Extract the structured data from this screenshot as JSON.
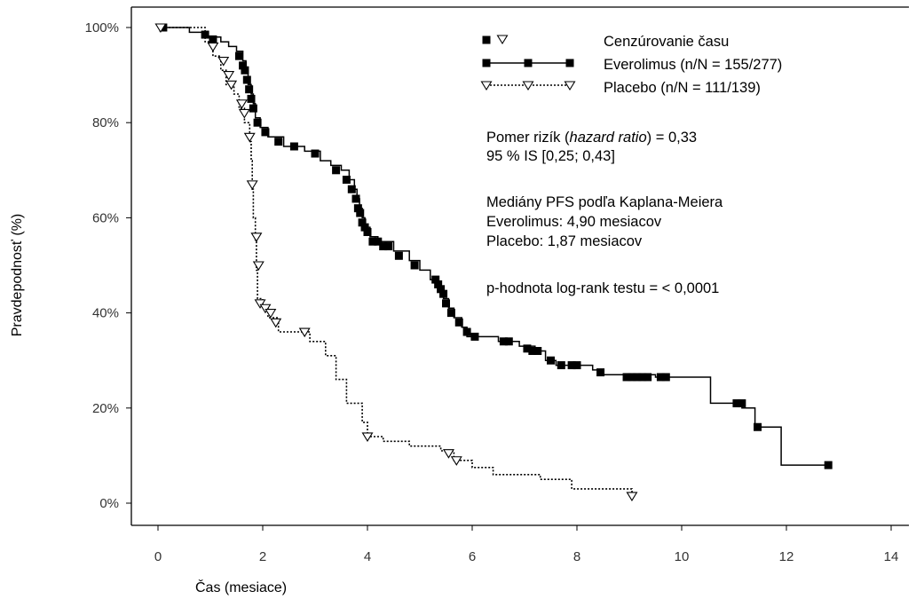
{
  "chart_data": {
    "type": "line",
    "step": true,
    "xlabel": "Čas (mesiace)",
    "ylabel": "Pravdepodnosť (%)",
    "xlim": [
      0,
      14
    ],
    "ylim": [
      0,
      100
    ],
    "x_ticks": [
      0,
      2,
      4,
      6,
      8,
      10,
      12,
      14
    ],
    "y_ticks": [
      0,
      20,
      40,
      60,
      80,
      100
    ],
    "y_tick_labels": [
      "0%",
      "20%",
      "40%",
      "60%",
      "80%",
      "100%"
    ],
    "grid": false,
    "legend_position": "top-right",
    "series": [
      {
        "name": "Everolimus (n/N = 155/277)",
        "color": "#000000",
        "line": "solid",
        "marker": "filled-square",
        "points": [
          [
            0,
            100
          ],
          [
            0.6,
            100
          ],
          [
            0.6,
            99
          ],
          [
            0.85,
            99
          ],
          [
            0.85,
            98
          ],
          [
            1.2,
            98
          ],
          [
            1.2,
            97
          ],
          [
            1.35,
            97
          ],
          [
            1.35,
            96
          ],
          [
            1.5,
            96
          ],
          [
            1.5,
            95
          ],
          [
            1.62,
            95
          ],
          [
            1.62,
            93
          ],
          [
            1.68,
            93
          ],
          [
            1.68,
            91
          ],
          [
            1.72,
            91
          ],
          [
            1.72,
            88
          ],
          [
            1.78,
            88
          ],
          [
            1.78,
            86
          ],
          [
            1.82,
            86
          ],
          [
            1.82,
            84
          ],
          [
            1.86,
            84
          ],
          [
            1.86,
            81
          ],
          [
            1.95,
            81
          ],
          [
            1.95,
            79
          ],
          [
            2.1,
            79
          ],
          [
            2.1,
            77
          ],
          [
            2.4,
            77
          ],
          [
            2.4,
            75
          ],
          [
            2.8,
            75
          ],
          [
            2.8,
            74
          ],
          [
            3.1,
            74
          ],
          [
            3.1,
            72
          ],
          [
            3.3,
            72
          ],
          [
            3.3,
            71
          ],
          [
            3.5,
            71
          ],
          [
            3.5,
            70
          ],
          [
            3.65,
            70
          ],
          [
            3.65,
            68
          ],
          [
            3.75,
            68
          ],
          [
            3.75,
            66
          ],
          [
            3.8,
            66
          ],
          [
            3.8,
            64
          ],
          [
            3.85,
            64
          ],
          [
            3.85,
            62
          ],
          [
            3.9,
            62
          ],
          [
            3.9,
            60
          ],
          [
            3.95,
            60
          ],
          [
            3.95,
            58
          ],
          [
            4.05,
            58
          ],
          [
            4.05,
            56
          ],
          [
            4.2,
            56
          ],
          [
            4.2,
            55
          ],
          [
            4.5,
            55
          ],
          [
            4.5,
            53
          ],
          [
            4.8,
            53
          ],
          [
            4.8,
            51
          ],
          [
            5.0,
            51
          ],
          [
            5.0,
            49
          ],
          [
            5.2,
            49
          ],
          [
            5.2,
            47
          ],
          [
            5.35,
            47
          ],
          [
            5.35,
            45
          ],
          [
            5.45,
            45
          ],
          [
            5.45,
            43
          ],
          [
            5.55,
            43
          ],
          [
            5.55,
            41
          ],
          [
            5.65,
            41
          ],
          [
            5.65,
            39
          ],
          [
            5.8,
            39
          ],
          [
            5.8,
            37
          ],
          [
            5.9,
            37
          ],
          [
            5.9,
            35
          ],
          [
            6.5,
            35
          ],
          [
            6.5,
            34
          ],
          [
            6.9,
            34
          ],
          [
            6.9,
            33
          ],
          [
            7.2,
            33
          ],
          [
            7.2,
            32
          ],
          [
            7.4,
            32
          ],
          [
            7.4,
            30
          ],
          [
            7.6,
            30
          ],
          [
            7.6,
            29
          ],
          [
            8.3,
            29
          ],
          [
            8.3,
            28
          ],
          [
            8.4,
            28
          ],
          [
            8.4,
            27
          ],
          [
            9.5,
            27
          ],
          [
            9.5,
            26.5
          ],
          [
            10.55,
            26.5
          ],
          [
            10.55,
            21
          ],
          [
            11.15,
            21
          ],
          [
            11.15,
            20
          ],
          [
            11.4,
            20
          ],
          [
            11.4,
            16
          ],
          [
            11.9,
            16
          ],
          [
            11.9,
            8
          ],
          [
            12.8,
            8
          ]
        ],
        "censored": [
          [
            0.1,
            100
          ],
          [
            0.9,
            98.5
          ],
          [
            1.05,
            97.5
          ],
          [
            1.55,
            94
          ],
          [
            1.62,
            92
          ],
          [
            1.66,
            91
          ],
          [
            1.7,
            89
          ],
          [
            1.74,
            87
          ],
          [
            1.78,
            85
          ],
          [
            1.82,
            83
          ],
          [
            1.9,
            80
          ],
          [
            2.05,
            78
          ],
          [
            2.3,
            76
          ],
          [
            2.6,
            75
          ],
          [
            3.0,
            73.5
          ],
          [
            3.4,
            70
          ],
          [
            3.6,
            68
          ],
          [
            3.7,
            66
          ],
          [
            3.78,
            64
          ],
          [
            3.82,
            62
          ],
          [
            3.86,
            61
          ],
          [
            3.9,
            59
          ],
          [
            3.95,
            58
          ],
          [
            4.0,
            57
          ],
          [
            4.1,
            55
          ],
          [
            4.2,
            55
          ],
          [
            4.3,
            54
          ],
          [
            4.4,
            54
          ],
          [
            4.6,
            52
          ],
          [
            4.9,
            50
          ],
          [
            5.3,
            47
          ],
          [
            5.35,
            46
          ],
          [
            5.4,
            45
          ],
          [
            5.45,
            44
          ],
          [
            5.5,
            42
          ],
          [
            5.6,
            40
          ],
          [
            5.75,
            38
          ],
          [
            5.9,
            36
          ],
          [
            6.05,
            35
          ],
          [
            6.6,
            34
          ],
          [
            6.7,
            34
          ],
          [
            7.05,
            32.5
          ],
          [
            7.15,
            32
          ],
          [
            7.25,
            32
          ],
          [
            7.5,
            30
          ],
          [
            7.7,
            29
          ],
          [
            7.9,
            29
          ],
          [
            8.0,
            29
          ],
          [
            8.45,
            27.5
          ],
          [
            8.95,
            26.5
          ],
          [
            9.05,
            26.5
          ],
          [
            9.15,
            26.5
          ],
          [
            9.25,
            26.5
          ],
          [
            9.35,
            26.5
          ],
          [
            9.6,
            26.5
          ],
          [
            9.7,
            26.5
          ],
          [
            11.05,
            21
          ],
          [
            11.15,
            21
          ],
          [
            11.45,
            16
          ],
          [
            12.8,
            8
          ]
        ]
      },
      {
        "name": "Placebo (n/N = 111/139)",
        "color": "#000000",
        "line": "dotted",
        "marker": "open-triangle-down",
        "points": [
          [
            0,
            100
          ],
          [
            0.9,
            100
          ],
          [
            0.9,
            97
          ],
          [
            1.05,
            97
          ],
          [
            1.05,
            94
          ],
          [
            1.2,
            94
          ],
          [
            1.2,
            91
          ],
          [
            1.3,
            91
          ],
          [
            1.3,
            88
          ],
          [
            1.45,
            88
          ],
          [
            1.45,
            86
          ],
          [
            1.55,
            86
          ],
          [
            1.55,
            83
          ],
          [
            1.65,
            83
          ],
          [
            1.65,
            80
          ],
          [
            1.75,
            80
          ],
          [
            1.75,
            76
          ],
          [
            1.78,
            76
          ],
          [
            1.78,
            72
          ],
          [
            1.8,
            72
          ],
          [
            1.8,
            66
          ],
          [
            1.82,
            66
          ],
          [
            1.82,
            60
          ],
          [
            1.86,
            60
          ],
          [
            1.86,
            55
          ],
          [
            1.88,
            55
          ],
          [
            1.88,
            49
          ],
          [
            1.9,
            49
          ],
          [
            1.9,
            43
          ],
          [
            2.0,
            43
          ],
          [
            2.0,
            41
          ],
          [
            2.1,
            41
          ],
          [
            2.1,
            39
          ],
          [
            2.3,
            39
          ],
          [
            2.3,
            36
          ],
          [
            2.9,
            36
          ],
          [
            2.9,
            34
          ],
          [
            3.2,
            34
          ],
          [
            3.2,
            31
          ],
          [
            3.4,
            31
          ],
          [
            3.4,
            26
          ],
          [
            3.6,
            26
          ],
          [
            3.6,
            21
          ],
          [
            3.9,
            21
          ],
          [
            3.9,
            17
          ],
          [
            4.0,
            17
          ],
          [
            4.0,
            14
          ],
          [
            4.3,
            14
          ],
          [
            4.3,
            13
          ],
          [
            4.8,
            13
          ],
          [
            4.8,
            12
          ],
          [
            5.4,
            12
          ],
          [
            5.4,
            11
          ],
          [
            5.65,
            11
          ],
          [
            5.65,
            9
          ],
          [
            6.0,
            9
          ],
          [
            6.0,
            7.5
          ],
          [
            6.4,
            7.5
          ],
          [
            6.4,
            6
          ],
          [
            7.3,
            6
          ],
          [
            7.3,
            5
          ],
          [
            7.9,
            5
          ],
          [
            7.9,
            3
          ],
          [
            9.05,
            3
          ],
          [
            9.05,
            1.5
          ]
        ],
        "censored": [
          [
            0.05,
            100
          ],
          [
            1.05,
            96
          ],
          [
            1.25,
            93
          ],
          [
            1.35,
            90
          ],
          [
            1.4,
            88
          ],
          [
            1.6,
            84
          ],
          [
            1.65,
            82
          ],
          [
            1.75,
            77
          ],
          [
            1.8,
            67
          ],
          [
            1.88,
            56
          ],
          [
            1.92,
            50
          ],
          [
            1.95,
            42
          ],
          [
            2.05,
            41
          ],
          [
            2.15,
            40
          ],
          [
            2.25,
            38
          ],
          [
            2.8,
            36
          ],
          [
            4.0,
            14
          ],
          [
            5.55,
            10.5
          ],
          [
            5.7,
            9
          ],
          [
            9.05,
            1.5
          ]
        ]
      }
    ],
    "legend": {
      "censor_label": "Cenzúrovanie času",
      "series_labels": [
        "Everolimus (n/N = 155/277)",
        "Placebo (n/N = 111/139)"
      ]
    },
    "annotations": {
      "hr_prefix": "Pomer rizík (",
      "hr_italic": "hazard ratio",
      "hr_suffix": ") = 0,33",
      "ci": "95 % IS [0,25; 0,43]",
      "median_title": "Mediány PFS podľa Kaplana-Meiera",
      "median_everolimus": "Everolimus: 4,90 mesiacov",
      "median_placebo": "Placebo: 1,87 mesiacov",
      "pvalue": "p-hodnota log-rank testu = < 0,0001"
    }
  }
}
